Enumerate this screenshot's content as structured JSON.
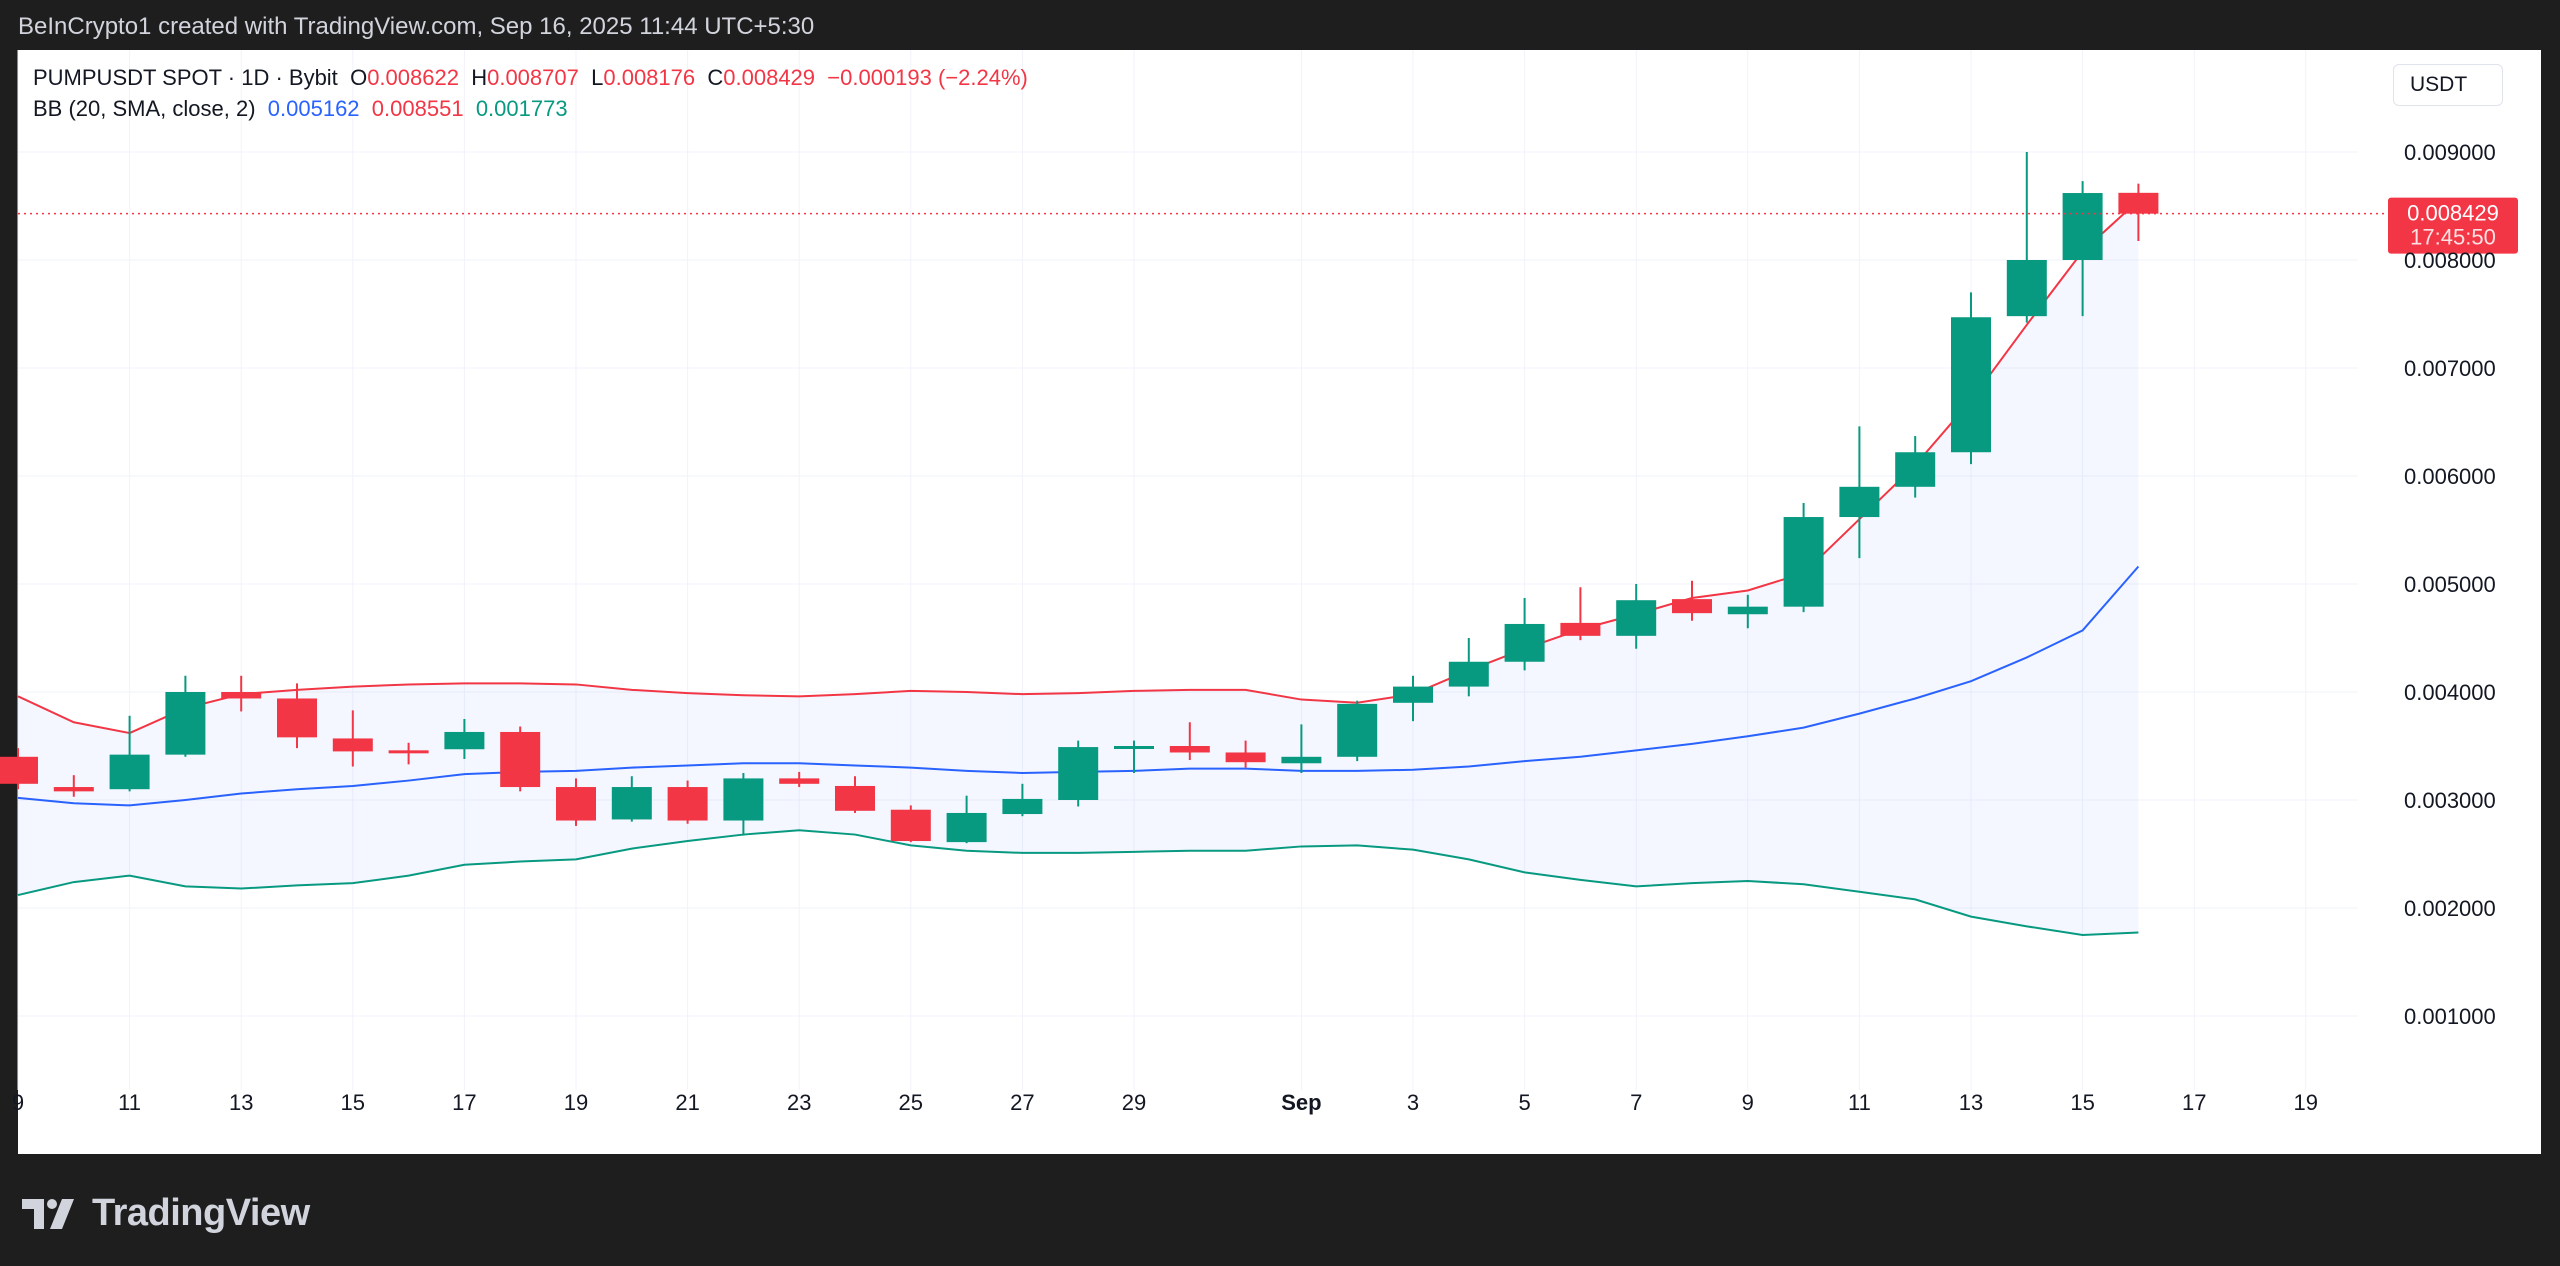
{
  "header": {
    "caption": "BeInCrypto1 created with TradingView.com, Sep 16, 2025 11:44 UTC+5:30"
  },
  "legend": {
    "symbol": "PUMPUSDT SPOT · 1D · Bybit",
    "o_label": "O",
    "o_value": "0.008622",
    "h_label": "H",
    "h_value": "0.008707",
    "l_label": "L",
    "l_value": "0.008176",
    "c_label": "C",
    "c_value": "0.008429",
    "change": "−0.000193 (−2.24%)",
    "bb_label": "BB (20, SMA, close, 2)",
    "bb_basis": "0.005162",
    "bb_upper": "0.008551",
    "bb_lower": "0.001773"
  },
  "currency": "USDT",
  "last_price_label": "0.008429",
  "countdown": "17:45:50",
  "footer": {
    "brand": "TradingView"
  },
  "colors": {
    "up": "#089981",
    "down": "#f23645",
    "basis": "#2962ff",
    "upper": "#f23645",
    "lower": "#089981",
    "band_fill": "#2962ff"
  },
  "chart_data": {
    "type": "candlestick",
    "interval": "1D",
    "ylim": [
      0.0,
      0.0095
    ],
    "y_ticks": [
      "0.009000",
      "0.008000",
      "0.007000",
      "0.006000",
      "0.005000",
      "0.004000",
      "0.003000",
      "0.002000",
      "0.001000"
    ],
    "x_ticks": [
      "9",
      "11",
      "13",
      "15",
      "17",
      "19",
      "21",
      "23",
      "25",
      "27",
      "29",
      "Sep",
      "3",
      "5",
      "7",
      "9",
      "11",
      "13",
      "15",
      "17",
      "19"
    ],
    "x_tick_dates": [
      "2025-08-09",
      "2025-08-11",
      "2025-08-13",
      "2025-08-15",
      "2025-08-17",
      "2025-08-19",
      "2025-08-21",
      "2025-08-23",
      "2025-08-25",
      "2025-08-27",
      "2025-08-29",
      "2025-09-01",
      "2025-09-03",
      "2025-09-05",
      "2025-09-07",
      "2025-09-09",
      "2025-09-11",
      "2025-09-13",
      "2025-09-15",
      "2025-09-17",
      "2025-09-19"
    ],
    "x_range": [
      "2025-08-09",
      "2025-09-20"
    ],
    "grid": true,
    "candles": [
      {
        "date": "2025-08-09",
        "o": 0.0034,
        "h": 0.00348,
        "l": 0.0031,
        "c": 0.00315
      },
      {
        "date": "2025-08-10",
        "o": 0.00312,
        "h": 0.00323,
        "l": 0.00303,
        "c": 0.00308
      },
      {
        "date": "2025-08-11",
        "o": 0.0031,
        "h": 0.00378,
        "l": 0.00308,
        "c": 0.00342
      },
      {
        "date": "2025-08-12",
        "o": 0.00342,
        "h": 0.00415,
        "l": 0.0034,
        "c": 0.004
      },
      {
        "date": "2025-08-13",
        "o": 0.004,
        "h": 0.00415,
        "l": 0.00382,
        "c": 0.00394
      },
      {
        "date": "2025-08-14",
        "o": 0.00394,
        "h": 0.00408,
        "l": 0.00348,
        "c": 0.00358
      },
      {
        "date": "2025-08-15",
        "o": 0.00357,
        "h": 0.00383,
        "l": 0.00331,
        "c": 0.00345
      },
      {
        "date": "2025-08-16",
        "o": 0.00346,
        "h": 0.00353,
        "l": 0.00333,
        "c": 0.00344
      },
      {
        "date": "2025-08-17",
        "o": 0.00347,
        "h": 0.00375,
        "l": 0.00338,
        "c": 0.00363
      },
      {
        "date": "2025-08-18",
        "o": 0.00363,
        "h": 0.00368,
        "l": 0.00308,
        "c": 0.00312
      },
      {
        "date": "2025-08-19",
        "o": 0.00312,
        "h": 0.0032,
        "l": 0.00276,
        "c": 0.00281
      },
      {
        "date": "2025-08-20",
        "o": 0.00282,
        "h": 0.00322,
        "l": 0.0028,
        "c": 0.00312
      },
      {
        "date": "2025-08-21",
        "o": 0.00312,
        "h": 0.00318,
        "l": 0.00278,
        "c": 0.00281
      },
      {
        "date": "2025-08-22",
        "o": 0.00281,
        "h": 0.00325,
        "l": 0.00267,
        "c": 0.0032
      },
      {
        "date": "2025-08-23",
        "o": 0.0032,
        "h": 0.00326,
        "l": 0.00312,
        "c": 0.00315
      },
      {
        "date": "2025-08-24",
        "o": 0.00313,
        "h": 0.00322,
        "l": 0.00288,
        "c": 0.0029
      },
      {
        "date": "2025-08-25",
        "o": 0.00291,
        "h": 0.00295,
        "l": 0.00261,
        "c": 0.00262
      },
      {
        "date": "2025-08-26",
        "o": 0.00261,
        "h": 0.00304,
        "l": 0.0026,
        "c": 0.00288
      },
      {
        "date": "2025-08-27",
        "o": 0.00287,
        "h": 0.00315,
        "l": 0.00285,
        "c": 0.00301
      },
      {
        "date": "2025-08-28",
        "o": 0.003,
        "h": 0.00355,
        "l": 0.00294,
        "c": 0.00349
      },
      {
        "date": "2025-08-29",
        "o": 0.0035,
        "h": 0.00355,
        "l": 0.00325,
        "c": 0.0035
      },
      {
        "date": "2025-08-30",
        "o": 0.0035,
        "h": 0.00372,
        "l": 0.00337,
        "c": 0.00344
      },
      {
        "date": "2025-08-31",
        "o": 0.00344,
        "h": 0.00355,
        "l": 0.0033,
        "c": 0.00335
      },
      {
        "date": "2025-09-01",
        "o": 0.00334,
        "h": 0.0037,
        "l": 0.00325,
        "c": 0.0034
      },
      {
        "date": "2025-09-02",
        "o": 0.0034,
        "h": 0.00392,
        "l": 0.00336,
        "c": 0.00389
      },
      {
        "date": "2025-09-03",
        "o": 0.0039,
        "h": 0.00415,
        "l": 0.00373,
        "c": 0.00405
      },
      {
        "date": "2025-09-04",
        "o": 0.00405,
        "h": 0.0045,
        "l": 0.00396,
        "c": 0.00428
      },
      {
        "date": "2025-09-05",
        "o": 0.00428,
        "h": 0.00487,
        "l": 0.0042,
        "c": 0.00463
      },
      {
        "date": "2025-09-06",
        "o": 0.00464,
        "h": 0.00497,
        "l": 0.00448,
        "c": 0.00452
      },
      {
        "date": "2025-09-07",
        "o": 0.00452,
        "h": 0.005,
        "l": 0.0044,
        "c": 0.00485
      },
      {
        "date": "2025-09-08",
        "o": 0.00486,
        "h": 0.00503,
        "l": 0.00466,
        "c": 0.00473
      },
      {
        "date": "2025-09-09",
        "o": 0.00472,
        "h": 0.0049,
        "l": 0.00459,
        "c": 0.00479
      },
      {
        "date": "2025-09-10",
        "o": 0.00479,
        "h": 0.00575,
        "l": 0.00474,
        "c": 0.00562
      },
      {
        "date": "2025-09-11",
        "o": 0.00562,
        "h": 0.00646,
        "l": 0.00524,
        "c": 0.0059
      },
      {
        "date": "2025-09-12",
        "o": 0.0059,
        "h": 0.00637,
        "l": 0.0058,
        "c": 0.00622
      },
      {
        "date": "2025-09-13",
        "o": 0.00622,
        "h": 0.0077,
        "l": 0.00611,
        "c": 0.00747
      },
      {
        "date": "2025-09-14",
        "o": 0.00748,
        "h": 0.009,
        "l": 0.00742,
        "c": 0.008
      },
      {
        "date": "2025-09-15",
        "o": 0.008,
        "h": 0.00873,
        "l": 0.00748,
        "c": 0.00862
      },
      {
        "date": "2025-09-16",
        "o": 0.008622,
        "h": 0.008707,
        "l": 0.008176,
        "c": 0.008429
      }
    ],
    "bollinger": {
      "dates": [
        "2025-08-09",
        "2025-08-10",
        "2025-08-11",
        "2025-08-12",
        "2025-08-13",
        "2025-08-14",
        "2025-08-15",
        "2025-08-16",
        "2025-08-17",
        "2025-08-18",
        "2025-08-19",
        "2025-08-20",
        "2025-08-21",
        "2025-08-22",
        "2025-08-23",
        "2025-08-24",
        "2025-08-25",
        "2025-08-26",
        "2025-08-27",
        "2025-08-28",
        "2025-08-29",
        "2025-08-30",
        "2025-08-31",
        "2025-09-01",
        "2025-09-02",
        "2025-09-03",
        "2025-09-04",
        "2025-09-05",
        "2025-09-06",
        "2025-09-07",
        "2025-09-08",
        "2025-09-09",
        "2025-09-10",
        "2025-09-11",
        "2025-09-12",
        "2025-09-13",
        "2025-09-14",
        "2025-09-15",
        "2025-09-16"
      ],
      "upper": [
        0.00396,
        0.00372,
        0.00362,
        0.00385,
        0.00398,
        0.00402,
        0.00405,
        0.00407,
        0.00408,
        0.00408,
        0.00407,
        0.00402,
        0.00399,
        0.00397,
        0.00396,
        0.00398,
        0.00401,
        0.004,
        0.00398,
        0.00399,
        0.00401,
        0.00402,
        0.00402,
        0.00393,
        0.0039,
        0.00398,
        0.0042,
        0.0044,
        0.00458,
        0.00472,
        0.00487,
        0.00494,
        0.0051,
        0.0056,
        0.0061,
        0.0067,
        0.0074,
        0.00808,
        0.008551
      ],
      "basis": [
        0.00302,
        0.00297,
        0.00295,
        0.003,
        0.00306,
        0.0031,
        0.00313,
        0.00318,
        0.00324,
        0.00326,
        0.00327,
        0.0033,
        0.00332,
        0.00334,
        0.00334,
        0.00332,
        0.0033,
        0.00327,
        0.00325,
        0.00326,
        0.00327,
        0.00329,
        0.00329,
        0.00327,
        0.00327,
        0.00328,
        0.00331,
        0.00336,
        0.0034,
        0.00346,
        0.00352,
        0.00359,
        0.00367,
        0.0038,
        0.00394,
        0.0041,
        0.00432,
        0.00457,
        0.005162
      ],
      "lower": [
        0.00212,
        0.00224,
        0.0023,
        0.0022,
        0.00218,
        0.00221,
        0.00223,
        0.0023,
        0.0024,
        0.00243,
        0.00245,
        0.00255,
        0.00262,
        0.00268,
        0.00272,
        0.00268,
        0.00258,
        0.00253,
        0.00251,
        0.00251,
        0.00252,
        0.00253,
        0.00253,
        0.00257,
        0.00258,
        0.00254,
        0.00245,
        0.00233,
        0.00226,
        0.0022,
        0.00223,
        0.00225,
        0.00222,
        0.00215,
        0.00208,
        0.00192,
        0.00183,
        0.00175,
        0.001773
      ]
    }
  }
}
